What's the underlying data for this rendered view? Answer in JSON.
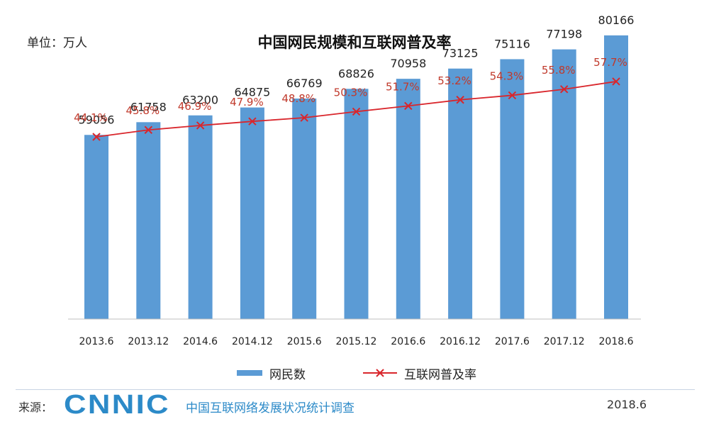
{
  "header": {
    "unit_label": "单位：万人",
    "title": "中国网民规模和互联网普及率"
  },
  "legend": {
    "bar_label": "网民数",
    "line_label": "互联网普及率"
  },
  "footer": {
    "source_label": "来源：",
    "logo_text": "CNNIC",
    "report_name": "中国互联网络发展状况统计调查",
    "date": "2018.6"
  },
  "colors": {
    "bar": "#5b9bd5",
    "line": "#d9262c",
    "rate_label": "#c0392b",
    "logo": "#2c8ac8"
  },
  "chart_data": {
    "type": "bar",
    "title": "中国网民规模和互联网普及率",
    "categories": [
      "2013.6",
      "2013.12",
      "2014.6",
      "2014.12",
      "2015.6",
      "2015.12",
      "2016.6",
      "2016.12",
      "2017.6",
      "2017.12",
      "2018.6"
    ],
    "series": [
      {
        "name": "网民数",
        "type": "bar",
        "values": [
          59056,
          61758,
          63200,
          64875,
          66769,
          68826,
          70958,
          73125,
          75116,
          77198,
          80166
        ],
        "labels": [
          "59056",
          "61758",
          "63200",
          "64875",
          "66769",
          "68826",
          "70958",
          "73125",
          "75116",
          "77198",
          "80166"
        ]
      },
      {
        "name": "互联网普及率",
        "type": "line",
        "values": [
          44.1,
          45.8,
          46.9,
          47.9,
          48.8,
          50.3,
          51.7,
          53.2,
          54.3,
          55.8,
          57.7
        ],
        "labels": [
          "44.1%",
          "45.8%",
          "46.9%",
          "47.9%",
          "48.8%",
          "50.3%",
          "51.7%",
          "53.2%",
          "54.3%",
          "55.8%",
          "57.7%"
        ]
      }
    ],
    "legend_position": "bottom",
    "grid": false
  }
}
